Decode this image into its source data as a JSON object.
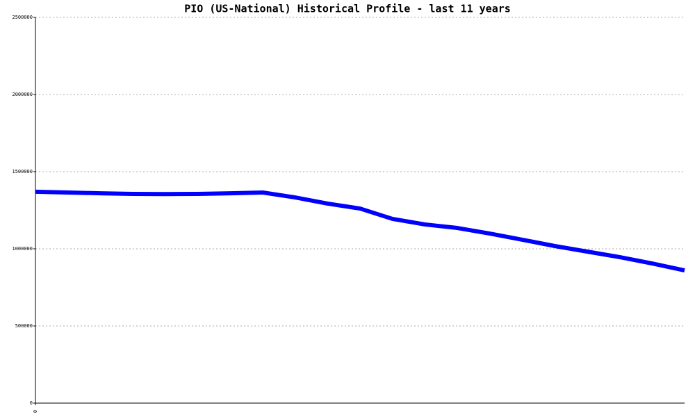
{
  "chart_data": {
    "type": "line",
    "title": "PIO (US-National) Historical Profile - last 11 years",
    "categories": [
      "0",
      null,
      null,
      null,
      null,
      null,
      null,
      null,
      null,
      null,
      null,
      null,
      null,
      null,
      null,
      null,
      null,
      null,
      null,
      null,
      null
    ],
    "series": [
      {
        "name": "PIO",
        "color": "#0000ff",
        "values": [
          1370000,
          1365000,
          1360000,
          1356000,
          1355000,
          1356000,
          1360000,
          1365000,
          1333000,
          1293000,
          1261000,
          1194000,
          1158000,
          1135000,
          1099000,
          1059000,
          1018000,
          982000,
          946000,
          905000,
          860000
        ]
      }
    ],
    "ylim": [
      0,
      2500000
    ],
    "yticks": [
      0,
      500000,
      1000000,
      1500000,
      2000000,
      2500000
    ],
    "grid": true
  }
}
